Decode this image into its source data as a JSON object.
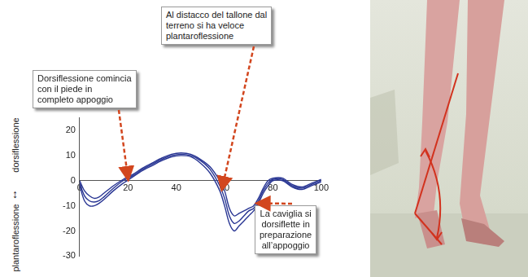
{
  "chart_data": {
    "type": "line",
    "y_axis_label": [
      "dorsiflessione",
      "↕",
      "plantaroflessione"
    ],
    "x": [
      0,
      2,
      4,
      6,
      8,
      10,
      14,
      18,
      22,
      26,
      30,
      34,
      38,
      42,
      46,
      50,
      54,
      58,
      60,
      62,
      64,
      66,
      68,
      70,
      72,
      74,
      76,
      78,
      80,
      84,
      88,
      92,
      96,
      100
    ],
    "series": [
      {
        "color": "#283593",
        "values": [
          -1,
          -6,
          -8,
          -8.5,
          -8,
          -6.5,
          -3,
          0,
          2,
          4.5,
          6.5,
          8.5,
          10,
          10.5,
          10,
          8,
          4.5,
          -2,
          -7,
          -14,
          -17,
          -16,
          -14,
          -12,
          -11,
          -8,
          -4,
          -1,
          0.5,
          0.5,
          -2,
          -3,
          -1.5,
          0
        ]
      },
      {
        "color": "#283593",
        "values": [
          -2,
          -8,
          -10,
          -10,
          -9,
          -7.5,
          -4,
          -1,
          1.5,
          4,
          6,
          8,
          9.5,
          10,
          9.5,
          7,
          3,
          -4,
          -10,
          -17,
          -20,
          -18,
          -16,
          -14,
          -12,
          -9,
          -5,
          -2,
          0,
          0,
          -2.5,
          -3.5,
          -2,
          -0.5
        ]
      },
      {
        "color": "#283593",
        "values": [
          0,
          -4,
          -6,
          -7,
          -6.5,
          -5,
          -2,
          0.5,
          2.5,
          5,
          7,
          9,
          10.5,
          11,
          10.5,
          8.5,
          5.5,
          0,
          -4,
          -11,
          -14,
          -13,
          -12,
          -11,
          -10,
          -7,
          -3,
          0,
          1,
          1,
          -1.5,
          -2.5,
          -1,
          0.5
        ]
      }
    ],
    "xlim": [
      0,
      100
    ],
    "xticks": [
      0,
      20,
      40,
      60,
      80,
      100
    ],
    "ylim": [
      -30,
      25
    ],
    "yticks": [
      -30,
      -20,
      -10,
      0,
      10,
      20
    ],
    "grid": false,
    "marker": "none",
    "line_style": "solid",
    "annotations": [
      {
        "text": [
          "Dorsiflessione comincia",
          "con il piede in",
          "completo appoggio"
        ],
        "x": 20,
        "y": 1
      },
      {
        "text": [
          "Al distacco del tallone dal",
          "terreno si ha veloce",
          "plantaroflessione"
        ],
        "x": 59,
        "y": -3
      },
      {
        "text": [
          "La caviglia si",
          "dorsiflette in",
          "preparazione",
          "all’appoggio"
        ],
        "x": 74,
        "y": -9
      }
    ]
  }
}
